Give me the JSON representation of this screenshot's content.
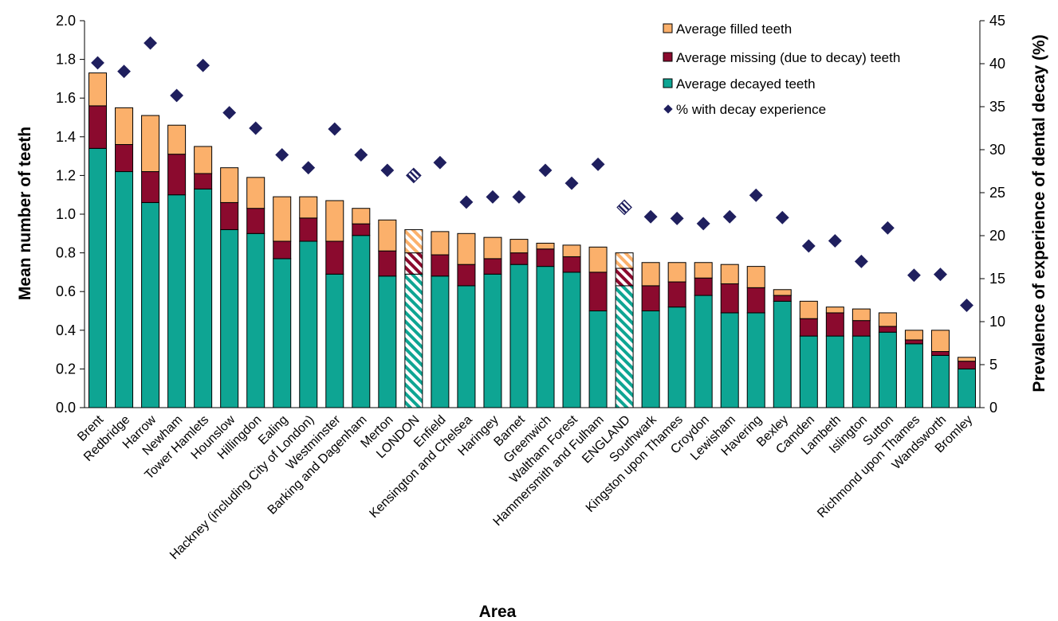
{
  "chart_data": {
    "type": "bar",
    "subtype": "stacked bar with secondary-axis scatter",
    "xlabel": "Area",
    "ylabel": "Mean number of teeth",
    "y2label": "Prevalence of experience of dental decay (%)",
    "ylim": [
      0,
      2.0
    ],
    "y2lim": [
      0,
      45
    ],
    "yticks": [
      "0.0",
      "0.2",
      "0.4",
      "0.6",
      "0.8",
      "1.0",
      "1.2",
      "1.4",
      "1.6",
      "1.8",
      "2.0"
    ],
    "y2ticks": [
      "0",
      "5",
      "10",
      "15",
      "20",
      "25",
      "30",
      "35",
      "40",
      "45"
    ],
    "grid": false,
    "legend_position": "top-right",
    "categories": [
      "Brent",
      "Redbridge",
      "Harrow",
      "Newham",
      "Tower Hamlets",
      "Hounslow",
      "Hillingdon",
      "Ealing",
      "Hackney (including City of London)",
      "Westminster",
      "Barking and Dagenham",
      "Merton",
      "LONDON",
      "Enfield",
      "Kensington and Chelsea",
      "Haringey",
      "Barnet",
      "Greenwich",
      "Waltham Forest",
      "Hammersmith and Fulham",
      "ENGLAND",
      "Southwark",
      "Kingston upon Thames",
      "Croydon",
      "Lewisham",
      "Havering",
      "Bexley",
      "Camden",
      "Lambeth",
      "Islington",
      "Sutton",
      "Richmond upon Thames",
      "Wandsworth",
      "Bromley"
    ],
    "highlighted_categories": [
      "LONDON",
      "ENGLAND"
    ],
    "series": [
      {
        "name": "Average decayed teeth",
        "axis": "left",
        "color": "#0EA593",
        "values": [
          1.34,
          1.22,
          1.06,
          1.1,
          1.13,
          0.92,
          0.9,
          0.77,
          0.86,
          0.69,
          0.89,
          0.68,
          0.69,
          0.68,
          0.63,
          0.69,
          0.74,
          0.73,
          0.7,
          0.5,
          0.63,
          0.5,
          0.52,
          0.58,
          0.49,
          0.49,
          0.55,
          0.37,
          0.37,
          0.37,
          0.39,
          0.33,
          0.27,
          0.2
        ]
      },
      {
        "name": "Average missing (due to decay) teeth",
        "axis": "left",
        "color": "#8B0A2E",
        "values": [
          0.22,
          0.14,
          0.16,
          0.21,
          0.08,
          0.14,
          0.13,
          0.09,
          0.12,
          0.17,
          0.06,
          0.13,
          0.11,
          0.11,
          0.11,
          0.08,
          0.06,
          0.09,
          0.08,
          0.2,
          0.09,
          0.13,
          0.13,
          0.09,
          0.15,
          0.13,
          0.03,
          0.09,
          0.12,
          0.08,
          0.03,
          0.02,
          0.02,
          0.04
        ]
      },
      {
        "name": "Average filled teeth",
        "axis": "left",
        "color": "#FBB06B",
        "values": [
          0.17,
          0.19,
          0.29,
          0.15,
          0.14,
          0.18,
          0.16,
          0.23,
          0.11,
          0.21,
          0.08,
          0.16,
          0.12,
          0.12,
          0.16,
          0.11,
          0.07,
          0.03,
          0.06,
          0.13,
          0.08,
          0.12,
          0.1,
          0.08,
          0.1,
          0.11,
          0.03,
          0.09,
          0.03,
          0.06,
          0.07,
          0.05,
          0.11,
          0.02
        ]
      },
      {
        "name": "% with decay experience",
        "axis": "right",
        "type": "scatter",
        "color": "#1F1F5E",
        "values": [
          40.1,
          39.1,
          42.4,
          36.3,
          39.8,
          34.3,
          32.5,
          29.4,
          27.9,
          32.4,
          29.4,
          27.6,
          27.0,
          28.5,
          23.9,
          24.5,
          24.5,
          27.6,
          26.1,
          28.3,
          23.3,
          22.2,
          22.0,
          21.4,
          22.2,
          24.7,
          22.1,
          18.8,
          19.4,
          17.0,
          20.9,
          15.4,
          15.5,
          11.9
        ]
      }
    ]
  }
}
